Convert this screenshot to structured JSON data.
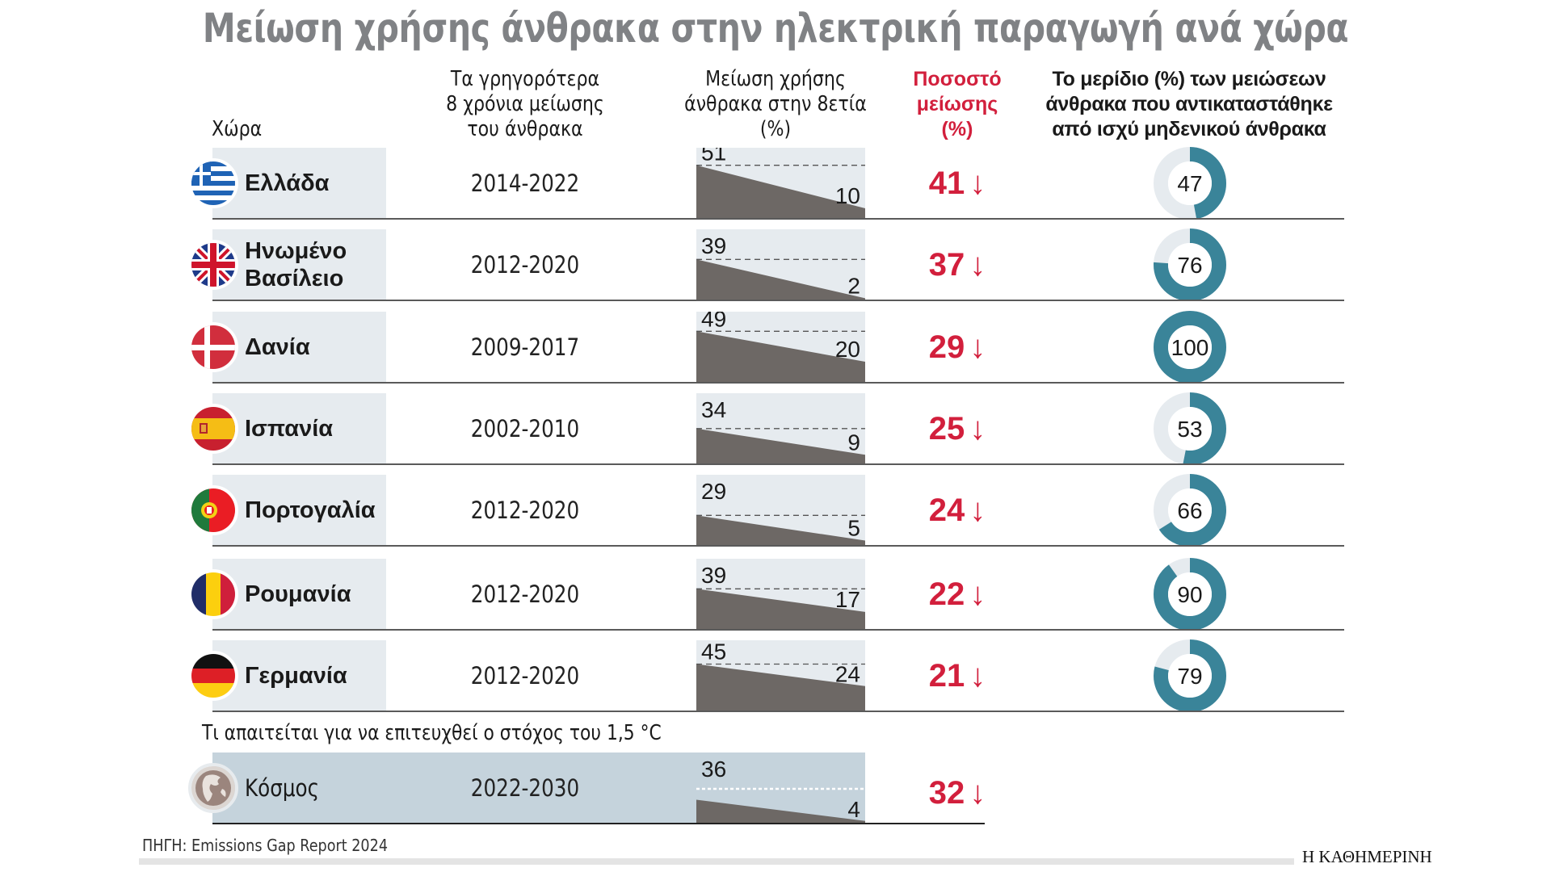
{
  "title": "Μείωση χρήσης άνθρακα στην ηλεκτρική παραγωγή ανά χώρα",
  "headers": {
    "country": "Χώρα",
    "period": [
      "Τα γρηγορότερα",
      "8 χρόνια μείωσης",
      "του άνθρακα"
    ],
    "decline": [
      "Μείωση χρήσης",
      "άνθρακα στην 8ετία",
      "(%)"
    ],
    "reduction": [
      "Ποσοστό",
      "μείωσης",
      "(%)"
    ],
    "share": [
      "Το μερίδιο (%) των μειώσεων",
      "άνθρακα που αντικαταστάθηκε",
      "από ισχύ μηδενικού άνθρακα"
    ]
  },
  "colors": {
    "title": "#808285",
    "accent_red": "#d21f3c",
    "donut_fill": "#3a8499",
    "donut_track": "#e6ebef",
    "row_band": "#e6ebef",
    "world_band": "#c5d3dc",
    "area_fill": "#6d6865"
  },
  "arrow_glyph": "↓",
  "world_subtitle": "Τι απαιτείται για να επιτευχθεί ο στόχος του 1,5 °C",
  "source": "ΠΗΓΗ: Emissions Gap Report 2024",
  "brand": "Η ΚΑΘΗΜΕΡΙΝΗ",
  "chart_data": {
    "type": "table",
    "title": "Μείωση χρήσης άνθρακα στην ηλεκτρική παραγωγή ανά χώρα",
    "columns": [
      "Χώρα",
      "Τα γρηγορότερα 8 χρόνια μείωσης του άνθρακα",
      "Μείωση χρήσης άνθρακα στην 8ετία (%) – αρχή",
      "Μείωση χρήσης άνθρακα στην 8ετία (%) – τέλος",
      "Ποσοστό μείωσης (%)",
      "Το μερίδιο (%) των μειώσεων άνθρακα που αντικαταστάθηκε από ισχύ μηδενικού άνθρακα"
    ],
    "rows": [
      {
        "country": "Ελλάδα",
        "flag": "greece-flag-icon",
        "period": "2014-2022",
        "start": 51,
        "end": 10,
        "reduction": 41,
        "share": 47
      },
      {
        "country": "Ηνωμένο Βασίλειο",
        "flag": "uk-flag-icon",
        "period": "2012-2020",
        "start": 39,
        "end": 2,
        "reduction": 37,
        "share": 76
      },
      {
        "country": "Δανία",
        "flag": "denmark-flag-icon",
        "period": "2009-2017",
        "start": 49,
        "end": 20,
        "reduction": 29,
        "share": 100
      },
      {
        "country": "Ισπανία",
        "flag": "spain-flag-icon",
        "period": "2002-2010",
        "start": 34,
        "end": 9,
        "reduction": 25,
        "share": 53
      },
      {
        "country": "Πορτογαλία",
        "flag": "portugal-flag-icon",
        "period": "2012-2020",
        "start": 29,
        "end": 5,
        "reduction": 24,
        "share": 66
      },
      {
        "country": "Ρουμανία",
        "flag": "romania-flag-icon",
        "period": "2012-2020",
        "start": 39,
        "end": 17,
        "reduction": 22,
        "share": 90
      },
      {
        "country": "Γερμανία",
        "flag": "germany-flag-icon",
        "period": "2012-2020",
        "start": 45,
        "end": 24,
        "reduction": 21,
        "share": 79
      }
    ],
    "world": {
      "country": "Κόσμος",
      "flag": "globe-icon",
      "period": "2022-2030",
      "start": 36,
      "end": 4,
      "reduction": 32
    },
    "mini_chart_range": [
      0,
      60
    ],
    "donut_range": [
      0,
      100
    ]
  }
}
